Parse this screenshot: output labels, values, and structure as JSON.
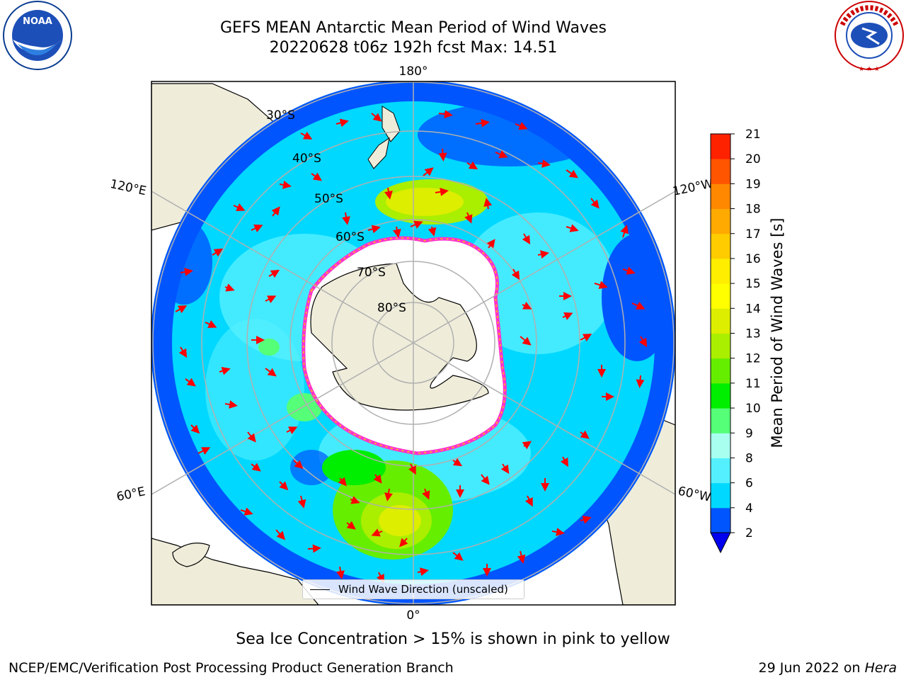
{
  "title": {
    "line1": "GEFS MEAN Antarctic Mean Period of Wind Waves",
    "line2": "20220628 t06z 192h fcst   Max: 14.51"
  },
  "map": {
    "projection": "south-polar-stereographic",
    "lat_labels": [
      "30°S",
      "40°S",
      "50°S",
      "60°S",
      "70°S",
      "80°S"
    ],
    "lon_labels": {
      "top": "180°",
      "bottom": "0°",
      "left_top": "120°E",
      "left_bottom": "60°E",
      "right_top": "120°W",
      "right_bottom": "60°W"
    },
    "legend_label": "Wind Wave Direction (unscaled)"
  },
  "colorbar": {
    "label": "Mean Period of Wind Waves [s]",
    "ticks": [
      "2",
      "4",
      "6",
      "8",
      "9",
      "10",
      "11",
      "12",
      "13",
      "14",
      "15",
      "16",
      "17",
      "18",
      "19",
      "20",
      "21"
    ],
    "colors": [
      "#0055ff",
      "#00d8ff",
      "#55f0ff",
      "#a8fff0",
      "#55ff77",
      "#00ee00",
      "#66ee00",
      "#aaee00",
      "#ddee00",
      "#ffff00",
      "#ffee00",
      "#ffcc00",
      "#ffaa00",
      "#ff8800",
      "#ff5500",
      "#ff2200"
    ],
    "extend_color": "#0000ee"
  },
  "subtitle": "Sea Ice Concentration > 15% is shown in pink to yellow",
  "footer": {
    "left": "NCEP/EMC/Verification Post Processing Product Generation Branch",
    "right_prefix": "29 Jun 2022 on ",
    "right_machine": "Hera"
  },
  "logos": {
    "left": "NOAA",
    "right": "NATIONAL WEATHER SERVICE"
  },
  "colors": {
    "land": "#efedda",
    "ocean_low": "#00d8ff",
    "ocean_deep": "#0055ff",
    "arrow": "#ff0000",
    "ice_edge": "#ff33cc"
  }
}
